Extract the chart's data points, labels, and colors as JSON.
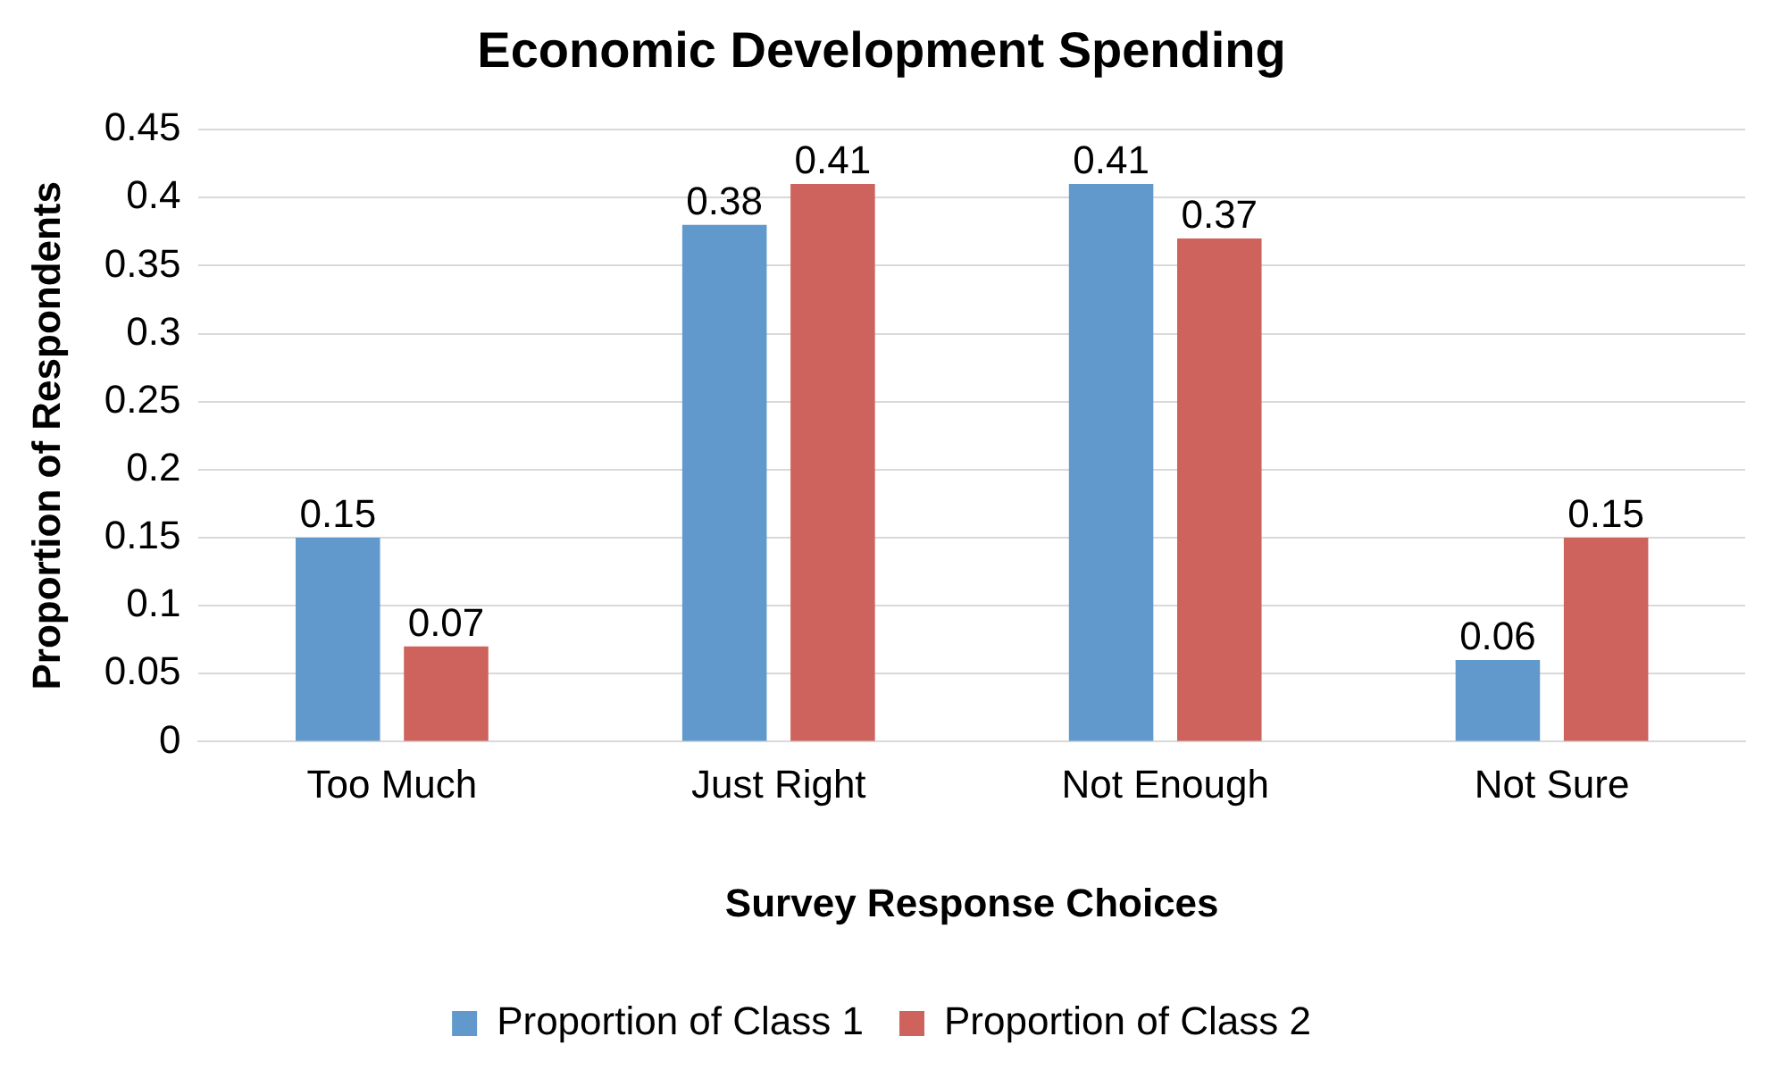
{
  "chart_data": {
    "type": "bar",
    "title": "Economic Development Spending",
    "xlabel": "Survey Response Choices",
    "ylabel": "Proportion of Respondents",
    "categories": [
      "Too Much",
      "Just Right",
      "Not Enough",
      "Not Sure"
    ],
    "series": [
      {
        "name": "Proportion of Class 1",
        "color": "#6199cc",
        "values": [
          0.15,
          0.38,
          0.41,
          0.06
        ]
      },
      {
        "name": "Proportion of Class 2",
        "color": "#cd635c",
        "values": [
          0.07,
          0.41,
          0.37,
          0.15
        ]
      }
    ],
    "ylim": [
      0,
      0.45
    ],
    "yticks": [
      0,
      0.05,
      0.1,
      0.15,
      0.2,
      0.25,
      0.3,
      0.35,
      0.4,
      0.45
    ],
    "grid": "y",
    "legend": "bottom",
    "data_labels": true
  }
}
